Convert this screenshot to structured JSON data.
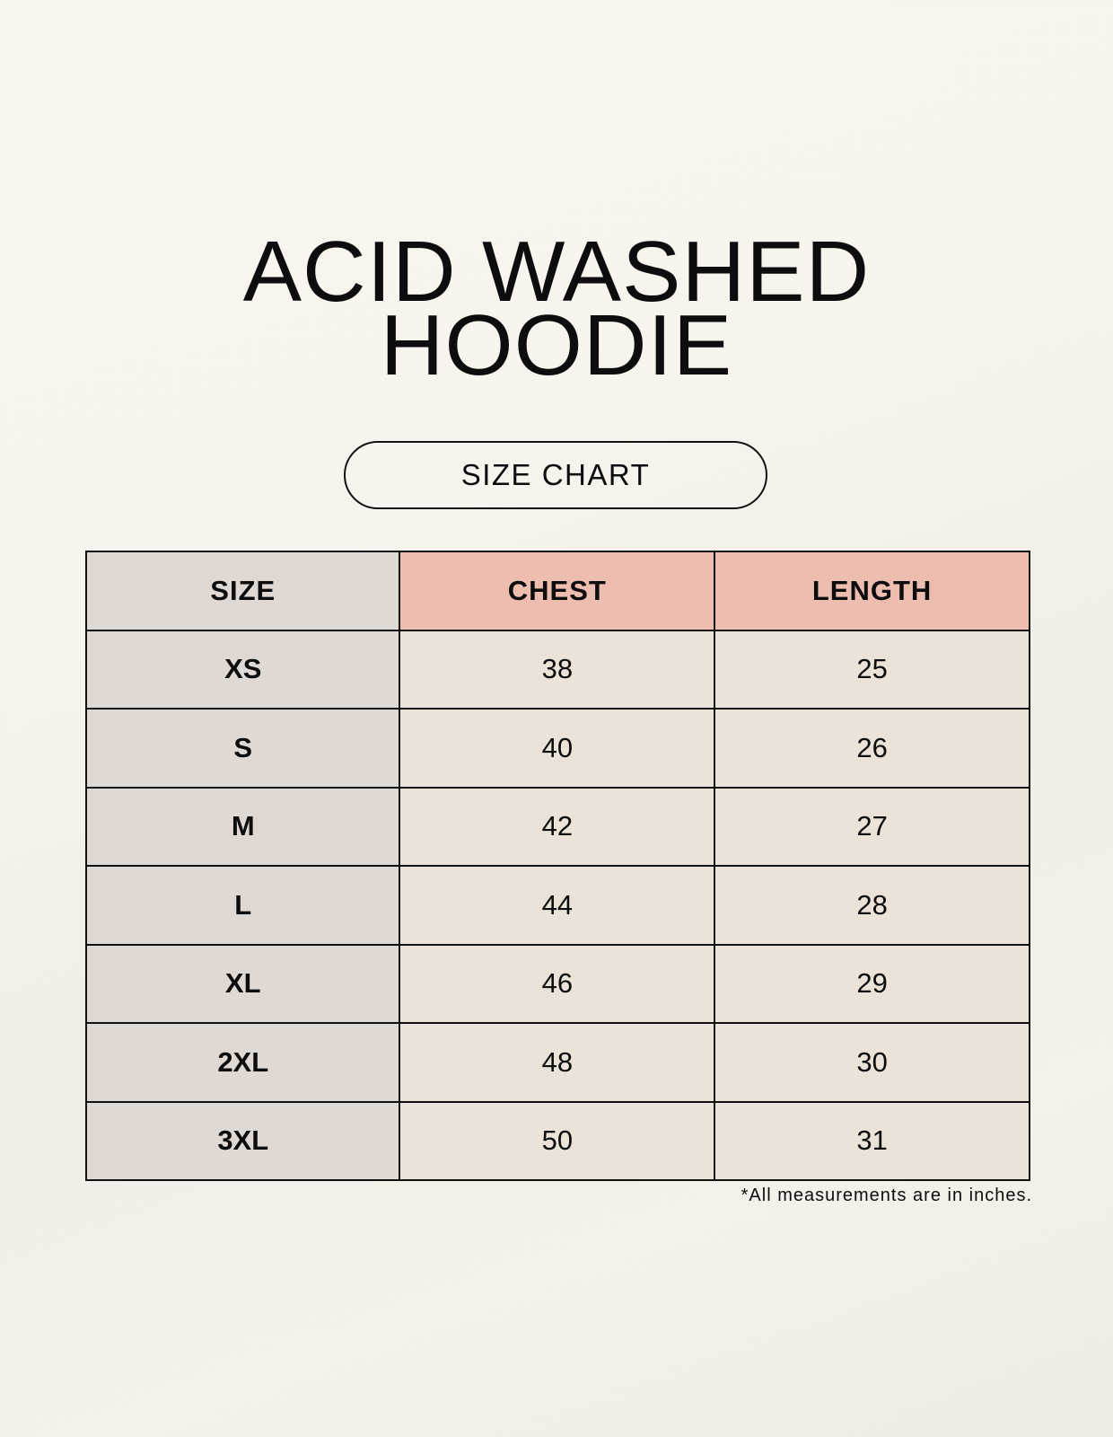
{
  "title": {
    "line1": "ACID WASHED",
    "line2": "HOODIE"
  },
  "badge": "SIZE CHART",
  "table": {
    "headers": [
      "SIZE",
      "CHEST",
      "LENGTH"
    ],
    "rows": [
      [
        "XS",
        "38",
        "25"
      ],
      [
        "S",
        "40",
        "26"
      ],
      [
        "M",
        "42",
        "27"
      ],
      [
        "L",
        "44",
        "28"
      ],
      [
        "XL",
        "46",
        "29"
      ],
      [
        "2XL",
        "48",
        "30"
      ],
      [
        "3XL",
        "50",
        "31"
      ]
    ]
  },
  "footnote": "*All measurements are in inches.",
  "colors": {
    "size_column": "#e0d9d3",
    "header_accent": "#edbdb0",
    "cells": "#ebe3d8"
  }
}
